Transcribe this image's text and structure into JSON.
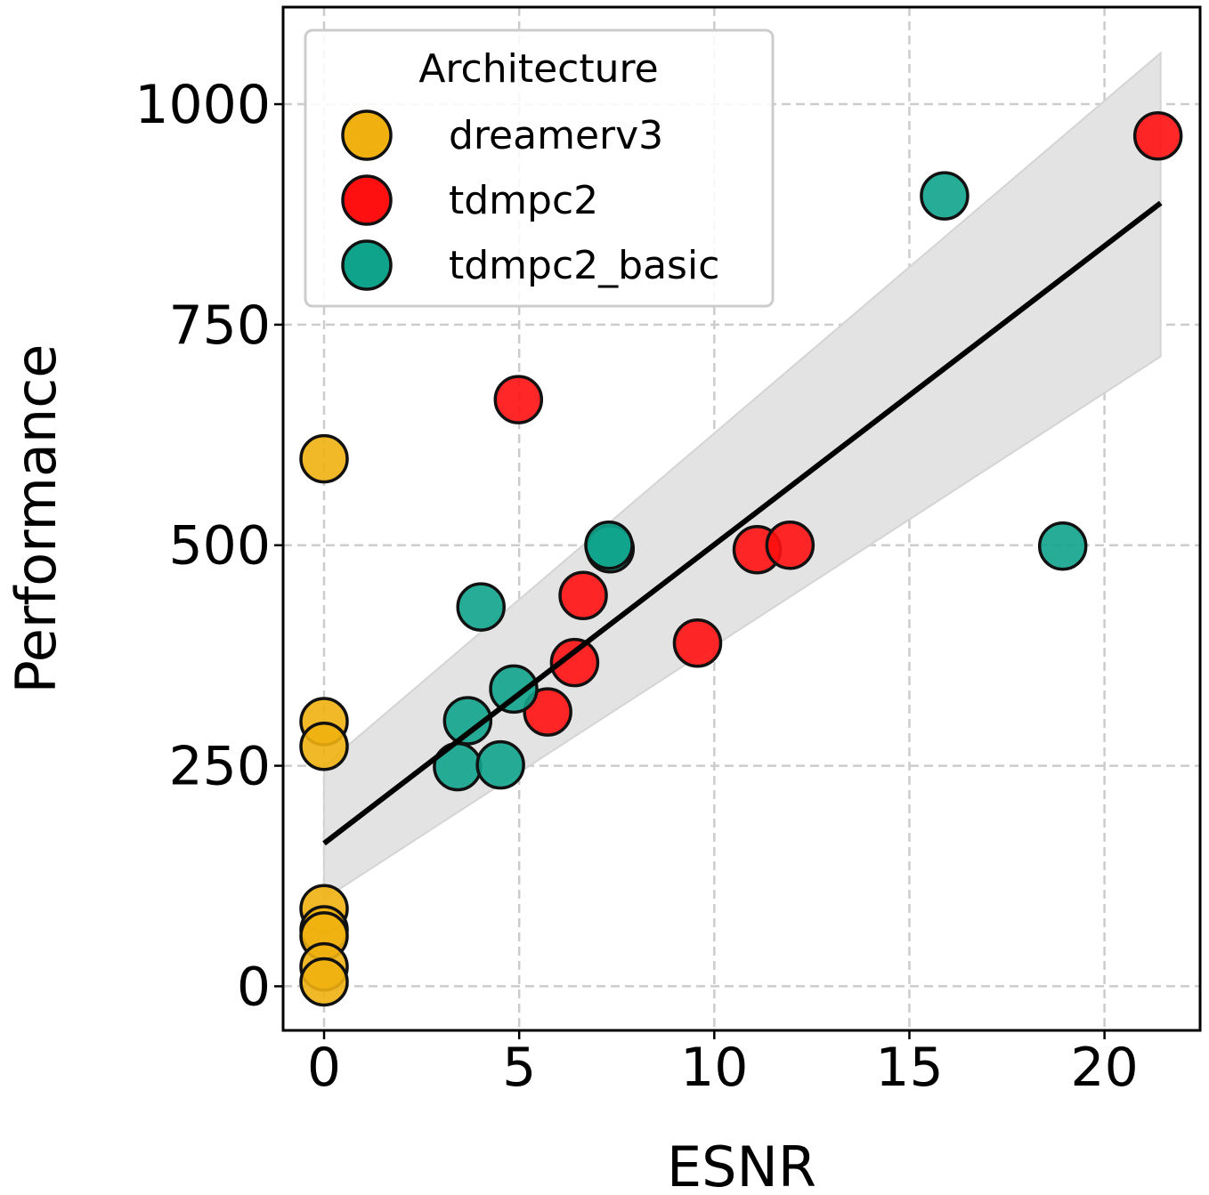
{
  "chart_data": {
    "type": "scatter",
    "title": "",
    "xlabel": "ESNR",
    "ylabel": "Performance",
    "xlim": [
      -1.05,
      22.45
    ],
    "ylim": [
      -50,
      1110
    ],
    "xticks": [
      0,
      5,
      10,
      15,
      20
    ],
    "yticks": [
      0,
      250,
      500,
      750,
      1000
    ],
    "grid": true,
    "legend": {
      "title": "Architecture",
      "placement": "top-left"
    },
    "series": [
      {
        "name": "dreamerv3",
        "color": "#F0B110",
        "points": [
          [
            0,
            598
          ],
          [
            0,
            300
          ],
          [
            0,
            272
          ],
          [
            0,
            88
          ],
          [
            0,
            64
          ],
          [
            0,
            57
          ],
          [
            0,
            22
          ],
          [
            0,
            5
          ]
        ]
      },
      {
        "name": "tdmpc2",
        "color": "#FF1010",
        "points": [
          [
            4.98,
            665
          ],
          [
            21.37,
            964
          ],
          [
            6.64,
            443
          ],
          [
            6.42,
            367
          ],
          [
            5.73,
            311
          ],
          [
            9.57,
            389
          ],
          [
            11.1,
            495
          ],
          [
            11.94,
            500
          ]
        ]
      },
      {
        "name": "tdmpc2_basic",
        "color": "#10A38C",
        "points": [
          [
            15.9,
            896
          ],
          [
            18.93,
            499
          ],
          [
            7.33,
            496
          ],
          [
            7.3,
            500
          ],
          [
            4.02,
            430
          ],
          [
            4.86,
            337
          ],
          [
            3.68,
            301
          ],
          [
            3.42,
            249
          ],
          [
            4.52,
            251
          ]
        ]
      }
    ],
    "regression": {
      "line": [
        [
          0,
          162
        ],
        [
          21.44,
          888
        ]
      ],
      "ci_lower": [
        [
          0,
          99
        ],
        [
          21.44,
          714
        ]
      ],
      "ci_upper": [
        [
          0,
          250
        ],
        [
          21.44,
          1058
        ]
      ],
      "ci_color": "#E3E3E3"
    }
  }
}
